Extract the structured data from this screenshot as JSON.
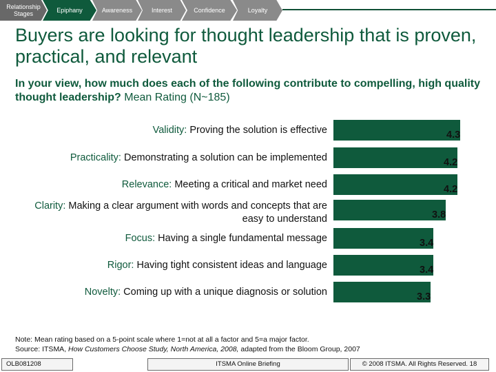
{
  "nav": {
    "steps": [
      "Relationship Stages",
      "Epiphany",
      "Awareness",
      "Interest",
      "Confidence",
      "Loyalty"
    ]
  },
  "title": "Buyers are looking for thought leadership that is proven, practical, and relevant",
  "question": {
    "bold": "In your view, how much does each of the following contribute to compelling, high quality thought leadership?",
    "normal": "Mean Rating (N~185)"
  },
  "chart_data": {
    "type": "bar",
    "orientation": "horizontal",
    "categories": [
      {
        "term": "Validity:",
        "desc": "Proving the solution is effective"
      },
      {
        "term": "Practicality:",
        "desc": "Demonstrating a solution can be implemented"
      },
      {
        "term": "Relevance:",
        "desc": "Meeting a critical and market need"
      },
      {
        "term": "Clarity:",
        "desc": "Making a clear argument with words and concepts that are easy to understand"
      },
      {
        "term": "Focus:",
        "desc": "Having a single fundamental message"
      },
      {
        "term": "Rigor:",
        "desc": "Having tight consistent ideas and language"
      },
      {
        "term": "Novelty:",
        "desc": "Coming up with a unique diagnosis or solution"
      }
    ],
    "values": [
      4.3,
      4.2,
      4.2,
      3.8,
      3.4,
      3.4,
      3.3
    ],
    "value_labels": [
      "4.3",
      "4.2",
      "4.2",
      "3.8",
      "3.4",
      "3.4",
      "3.3"
    ],
    "xlim": [
      0,
      5
    ],
    "color": "#0f5a3c"
  },
  "note": {
    "line1": "Note: Mean rating based on a 5-point scale where 1=not at all a factor and 5=a major factor.",
    "line2_prefix": "Source: ITSMA,",
    "line2_italic": "How Customers Choose Study, North America, 2008,",
    "line2_suffix": "adapted from the Bloom Group, 2007"
  },
  "footer": {
    "code": "OLB081208",
    "center": "ITSMA Online Briefing",
    "right": "© 2008 ITSMA. All Rights Reserved. 18"
  },
  "colors": {
    "brand_green": "#0f5a3c",
    "grey_step": "#8a8a8a"
  }
}
